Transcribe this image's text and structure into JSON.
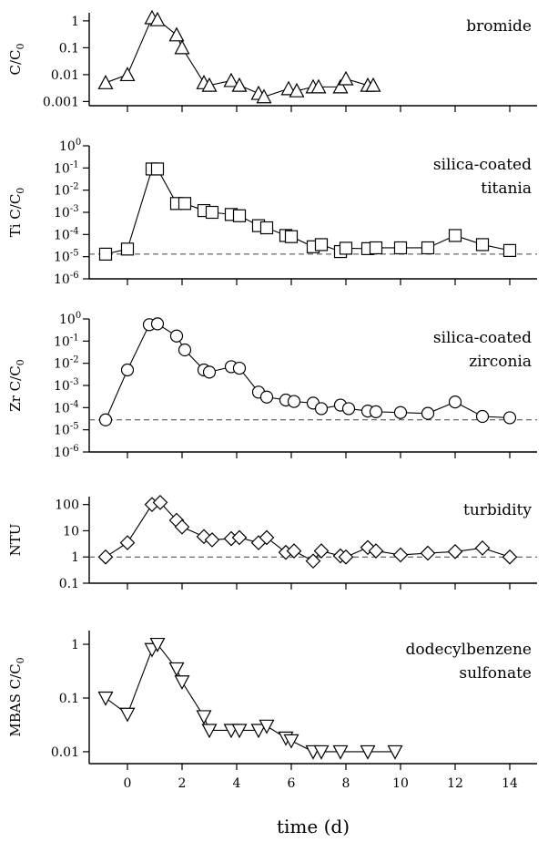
{
  "figure": {
    "xlabel": "time (d)",
    "x_ticks": [
      0,
      2,
      4,
      6,
      8,
      10,
      12,
      14
    ],
    "xlim": [
      -1.4,
      15.0
    ]
  },
  "chart_data": [
    {
      "type": "line",
      "panel_label": [
        "bromide"
      ],
      "ylabel": "C/C0",
      "yscale": "log",
      "ylim": [
        0.0007,
        2
      ],
      "y_ticks": [
        {
          "value": 1,
          "label": "1"
        },
        {
          "value": 0.1,
          "label": "0.1"
        },
        {
          "value": 0.01,
          "label": "0.01"
        },
        {
          "value": 0.001,
          "label": "0.001"
        }
      ],
      "marker": "triangle-up",
      "baseline": null,
      "series": [
        {
          "x": [
            -0.8,
            0,
            0.9,
            1.1,
            1.8,
            2.0,
            2.8,
            3.0,
            3.8,
            4.1,
            4.8,
            5.0,
            5.9,
            6.2,
            6.8,
            7.0,
            7.8,
            8.0,
            8.8,
            9.0
          ],
          "y": [
            0.005,
            0.01,
            1.3,
            1.1,
            0.3,
            0.1,
            0.005,
            0.004,
            0.006,
            0.004,
            0.002,
            0.0015,
            0.003,
            0.0025,
            0.0035,
            0.0035,
            0.0035,
            0.007,
            0.004,
            0.004
          ]
        }
      ]
    },
    {
      "type": "line",
      "panel_label": [
        "silica-coated",
        "titania"
      ],
      "ylabel": "Ti C/C0",
      "yscale": "log",
      "ylim": [
        1e-06,
        1
      ],
      "y_ticks": [
        {
          "value": 1,
          "label": "10",
          "exp": "0"
        },
        {
          "value": 0.1,
          "label": "10",
          "exp": "-1"
        },
        {
          "value": 0.01,
          "label": "10",
          "exp": "-2"
        },
        {
          "value": 0.001,
          "label": "10",
          "exp": "-3"
        },
        {
          "value": 0.0001,
          "label": "10",
          "exp": "-4"
        },
        {
          "value": 1e-05,
          "label": "10",
          "exp": "-5"
        },
        {
          "value": 1e-06,
          "label": "10",
          "exp": "-6"
        }
      ],
      "marker": "square",
      "baseline": 1.3e-05,
      "series": [
        {
          "x": [
            -0.8,
            0,
            0.9,
            1.1,
            1.8,
            2.1,
            2.8,
            3.1,
            3.8,
            4.1,
            4.8,
            5.1,
            5.8,
            6.0,
            6.8,
            7.1,
            7.8,
            8.0,
            8.8,
            9.1,
            10.0,
            11.0,
            12.0,
            13.0,
            14.0
          ],
          "y": [
            1.3e-05,
            2.2e-05,
            0.09,
            0.09,
            0.0025,
            0.0025,
            0.0012,
            0.001,
            0.0008,
            0.0007,
            0.00025,
            0.0002,
            9e-05,
            8e-05,
            2.8e-05,
            3.5e-05,
            1.7e-05,
            2.4e-05,
            2.3e-05,
            2.5e-05,
            2.5e-05,
            2.5e-05,
            9e-05,
            3.5e-05,
            1.9e-05
          ]
        }
      ]
    },
    {
      "type": "line",
      "panel_label": [
        "silica-coated",
        "zirconia"
      ],
      "ylabel": "Zr C/C0",
      "yscale": "log",
      "ylim": [
        1e-06,
        1
      ],
      "y_ticks": [
        {
          "value": 1,
          "label": "10",
          "exp": "0"
        },
        {
          "value": 0.1,
          "label": "10",
          "exp": "-1"
        },
        {
          "value": 0.01,
          "label": "10",
          "exp": "-2"
        },
        {
          "value": 0.001,
          "label": "10",
          "exp": "-3"
        },
        {
          "value": 0.0001,
          "label": "10",
          "exp": "-4"
        },
        {
          "value": 1e-05,
          "label": "10",
          "exp": "-5"
        },
        {
          "value": 1e-06,
          "label": "10",
          "exp": "-6"
        }
      ],
      "marker": "circle",
      "baseline": 2.8e-05,
      "series": [
        {
          "x": [
            -0.8,
            0,
            0.8,
            1.1,
            1.8,
            2.1,
            2.8,
            3.0,
            3.8,
            4.1,
            4.8,
            5.1,
            5.8,
            6.1,
            6.8,
            7.1,
            7.8,
            8.1,
            8.8,
            9.1,
            10.0,
            11.0,
            12.0,
            13.0,
            14.0
          ],
          "y": [
            2.8e-05,
            0.005,
            0.55,
            0.6,
            0.17,
            0.04,
            0.005,
            0.004,
            0.007,
            0.006,
            0.0005,
            0.0003,
            0.00022,
            0.00019,
            0.00016,
            9e-05,
            0.00013,
            9e-05,
            7e-05,
            6.5e-05,
            6e-05,
            5.5e-05,
            0.00018,
            4e-05,
            3.5e-05
          ]
        }
      ]
    },
    {
      "type": "line",
      "panel_label": [
        "turbidity"
      ],
      "ylabel": "NTU",
      "yscale": "log",
      "ylim": [
        0.1,
        200
      ],
      "y_ticks": [
        {
          "value": 100,
          "label": "100"
        },
        {
          "value": 10,
          "label": "10"
        },
        {
          "value": 1,
          "label": "1"
        },
        {
          "value": 0.1,
          "label": "0.1"
        }
      ],
      "marker": "diamond",
      "baseline": 1.0,
      "series": [
        {
          "x": [
            -0.8,
            0,
            0.9,
            1.2,
            1.8,
            2.0,
            2.8,
            3.1,
            3.8,
            4.1,
            4.8,
            5.1,
            5.8,
            6.1,
            6.8,
            7.1,
            7.8,
            8.0,
            8.8,
            9.1,
            10.0,
            11.0,
            12.0,
            13.0,
            14.0
          ],
          "y": [
            1.0,
            3.5,
            100,
            120,
            25,
            14,
            6,
            4.5,
            5,
            5.5,
            3.5,
            5.5,
            1.5,
            1.7,
            0.7,
            1.7,
            1.1,
            1.0,
            2.3,
            1.7,
            1.2,
            1.4,
            1.6,
            2.2,
            1.0
          ]
        }
      ]
    },
    {
      "type": "line",
      "panel_label": [
        "dodecylbenzene",
        "sulfonate"
      ],
      "ylabel": "MBAS C/C0",
      "yscale": "log",
      "ylim": [
        0.006,
        1.8
      ],
      "y_ticks": [
        {
          "value": 1,
          "label": "1"
        },
        {
          "value": 0.1,
          "label": "0.1"
        },
        {
          "value": 0.01,
          "label": "0.01"
        }
      ],
      "marker": "triangle-down",
      "baseline": null,
      "series": [
        {
          "x": [
            -0.8,
            0,
            0.9,
            1.1,
            1.8,
            2.0,
            2.8,
            3.0,
            3.8,
            4.1,
            4.8,
            5.1,
            5.8,
            6.0,
            6.8,
            7.1,
            7.8,
            8.8,
            9.8
          ],
          "y": [
            0.1,
            0.05,
            0.8,
            1.0,
            0.35,
            0.2,
            0.045,
            0.025,
            0.025,
            0.025,
            0.025,
            0.03,
            0.018,
            0.016,
            0.01,
            0.01,
            0.01,
            0.01,
            0.01
          ]
        }
      ]
    }
  ]
}
